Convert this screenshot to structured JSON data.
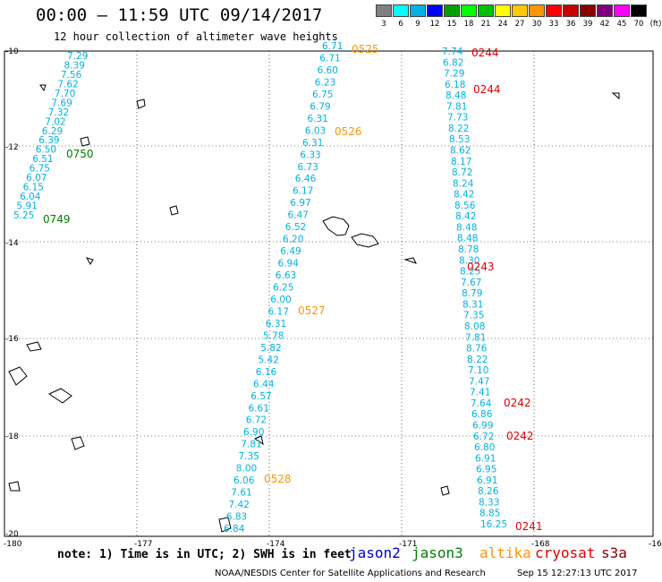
{
  "header": {
    "title": "00:00 — 11:59 UTC 09/14/2017",
    "subtitle": "12 hour collection of altimeter wave heights"
  },
  "scale": {
    "unit": "(ft)",
    "colors": [
      "#808080",
      "#00ffff",
      "#00b2e6",
      "#0000ff",
      "#00a000",
      "#00ff00",
      "#00c000",
      "#ffff00",
      "#ffc800",
      "#ff9600",
      "#ff0000",
      "#c80000",
      "#8b0000",
      "#800080",
      "#ff00ff",
      "#000000"
    ],
    "labels": [
      "3",
      "6",
      "9",
      "12",
      "15",
      "18",
      "21",
      "24",
      "27",
      "30",
      "33",
      "36",
      "39",
      "42",
      "45",
      "70"
    ]
  },
  "axes": {
    "lon_ticks": [
      "-180",
      "-177",
      "-174",
      "-171",
      "-168",
      "-16"
    ],
    "lat_ticks": [
      "-10",
      "-12",
      "-14",
      "-16",
      "-18",
      "-20"
    ]
  },
  "colors": {
    "jason2": "#0000cc",
    "jason3": "#008000",
    "altika": "#ff9600",
    "cryosat": "#e00000",
    "s3a": "#8b0000",
    "value": "#00b2e6"
  },
  "tracks": [
    {
      "name": "track-a",
      "values": [
        "7.29",
        "8.39",
        "7.56",
        "7.62",
        "7.70",
        "7.69",
        "7.32",
        "7.02",
        "6.29",
        "6.39",
        "6.50",
        "6.51",
        "6.75",
        "6.07",
        "6.15",
        "6.04",
        "5.91",
        "5.25"
      ]
    },
    {
      "name": "track-b",
      "values": [
        "6.71",
        "6.71",
        "6.60",
        "6.23",
        "6.75",
        "6.79",
        "6.31",
        "6.03",
        "6.31",
        "6.33",
        "6.73",
        "6.46",
        "6.17",
        "6.97",
        "6.47",
        "6.52",
        "6.20",
        "6.49",
        "6.94",
        "6.63",
        "6.25",
        "6.00",
        "6.17",
        "6.31",
        "5.78",
        "5.82",
        "5.42",
        "6.16",
        "6.44",
        "6.57",
        "6.61",
        "6.72",
        "6.90",
        "7.81",
        "7.35",
        "8.00",
        "6.06",
        "7.61",
        "7.42",
        "6.83",
        "6.84"
      ]
    },
    {
      "name": "track-c",
      "values": [
        "7.74",
        "6.82",
        "7.29",
        "6.18",
        "8.48",
        "7.81",
        "7.73",
        "8.22",
        "8.53",
        "8.62",
        "8.17",
        "8.72",
        "8.24",
        "8.42",
        "8.56",
        "8.42",
        "8.48",
        "8.48",
        "8.78",
        "8.30",
        "8.25",
        "7.67",
        "8.79",
        "8.31",
        "7.35",
        "8.08",
        "7.81",
        "8.76",
        "8.22",
        "7.10",
        "7.47",
        "7.41",
        "7.64",
        "6.86",
        "6.99",
        "6.72",
        "6.80",
        "6.91",
        "6.95",
        "6.91",
        "8.26",
        "8.33",
        "8.85",
        "16.25"
      ]
    }
  ],
  "time_labels": [
    {
      "text": "0525",
      "sat": "altika"
    },
    {
      "text": "0526",
      "sat": "altika"
    },
    {
      "text": "0527",
      "sat": "altika"
    },
    {
      "text": "0528",
      "sat": "altika"
    },
    {
      "text": "0750",
      "sat": "jason3"
    },
    {
      "text": "0749",
      "sat": "jason3"
    },
    {
      "text": "0244",
      "sat": "cryosat"
    },
    {
      "text": "0244",
      "sat": "cryosat"
    },
    {
      "text": "0243",
      "sat": "cryosat"
    },
    {
      "text": "0242",
      "sat": "cryosat"
    },
    {
      "text": "0242",
      "sat": "cryosat"
    },
    {
      "text": "0241",
      "sat": "cryosat"
    }
  ],
  "footer": {
    "note": "note: 1) Time is in UTC; 2) SWH is in feet",
    "sats": {
      "jason2": "jason2",
      "jason3": "jason3",
      "altika": "altika",
      "cryosat": "cryosat",
      "s3a": "s3a"
    },
    "credit": "NOAA/NESDIS Center for Satellite Applications and Research",
    "stamp": "Sep 15 12:27:13 UTC 2017"
  }
}
